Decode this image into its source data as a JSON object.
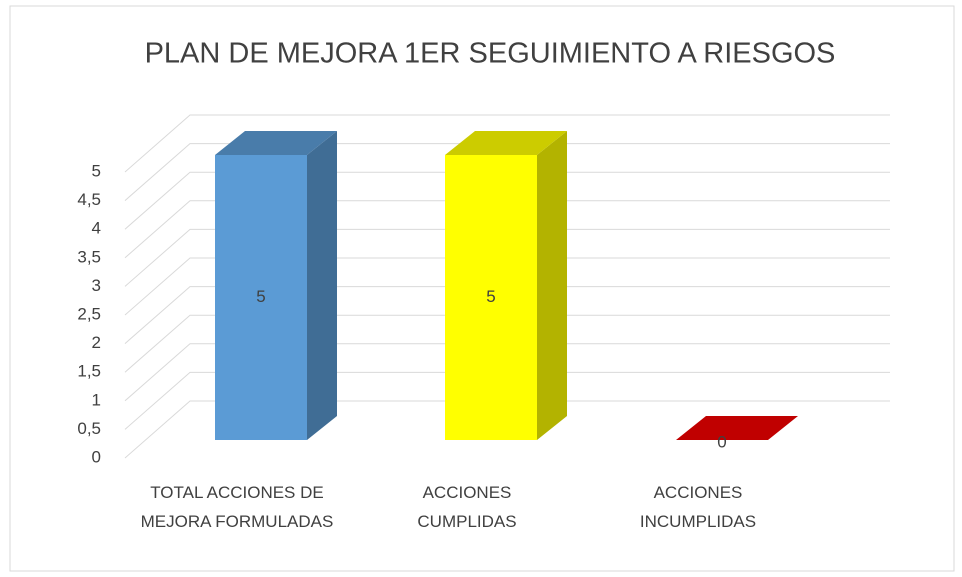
{
  "chart_data": {
    "type": "bar3d",
    "title": "PLAN DE MEJORA 1ER SEGUIMIENTO A RIESGOS",
    "categories": [
      "TOTAL ACCIONES DE MEJORA FORMULADAS",
      "ACCIONES CUMPLIDAS",
      "ACCIONES INCUMPLIDAS"
    ],
    "values": [
      5,
      5,
      0
    ],
    "colors": [
      "#5b9bd5",
      "#ffff00",
      "#c00000"
    ],
    "ylim": [
      0,
      5
    ],
    "yticks": [
      0,
      {
        "value": 0.5,
        "label": "0,5"
      },
      1,
      {
        "value": 1.5,
        "label": "1,5"
      },
      2,
      {
        "value": 2.5,
        "label": "2,5"
      },
      3,
      {
        "value": 3.5,
        "label": "3,5"
      },
      4,
      {
        "value": 4.5,
        "label": "4,5"
      },
      5
    ],
    "grid": true
  }
}
